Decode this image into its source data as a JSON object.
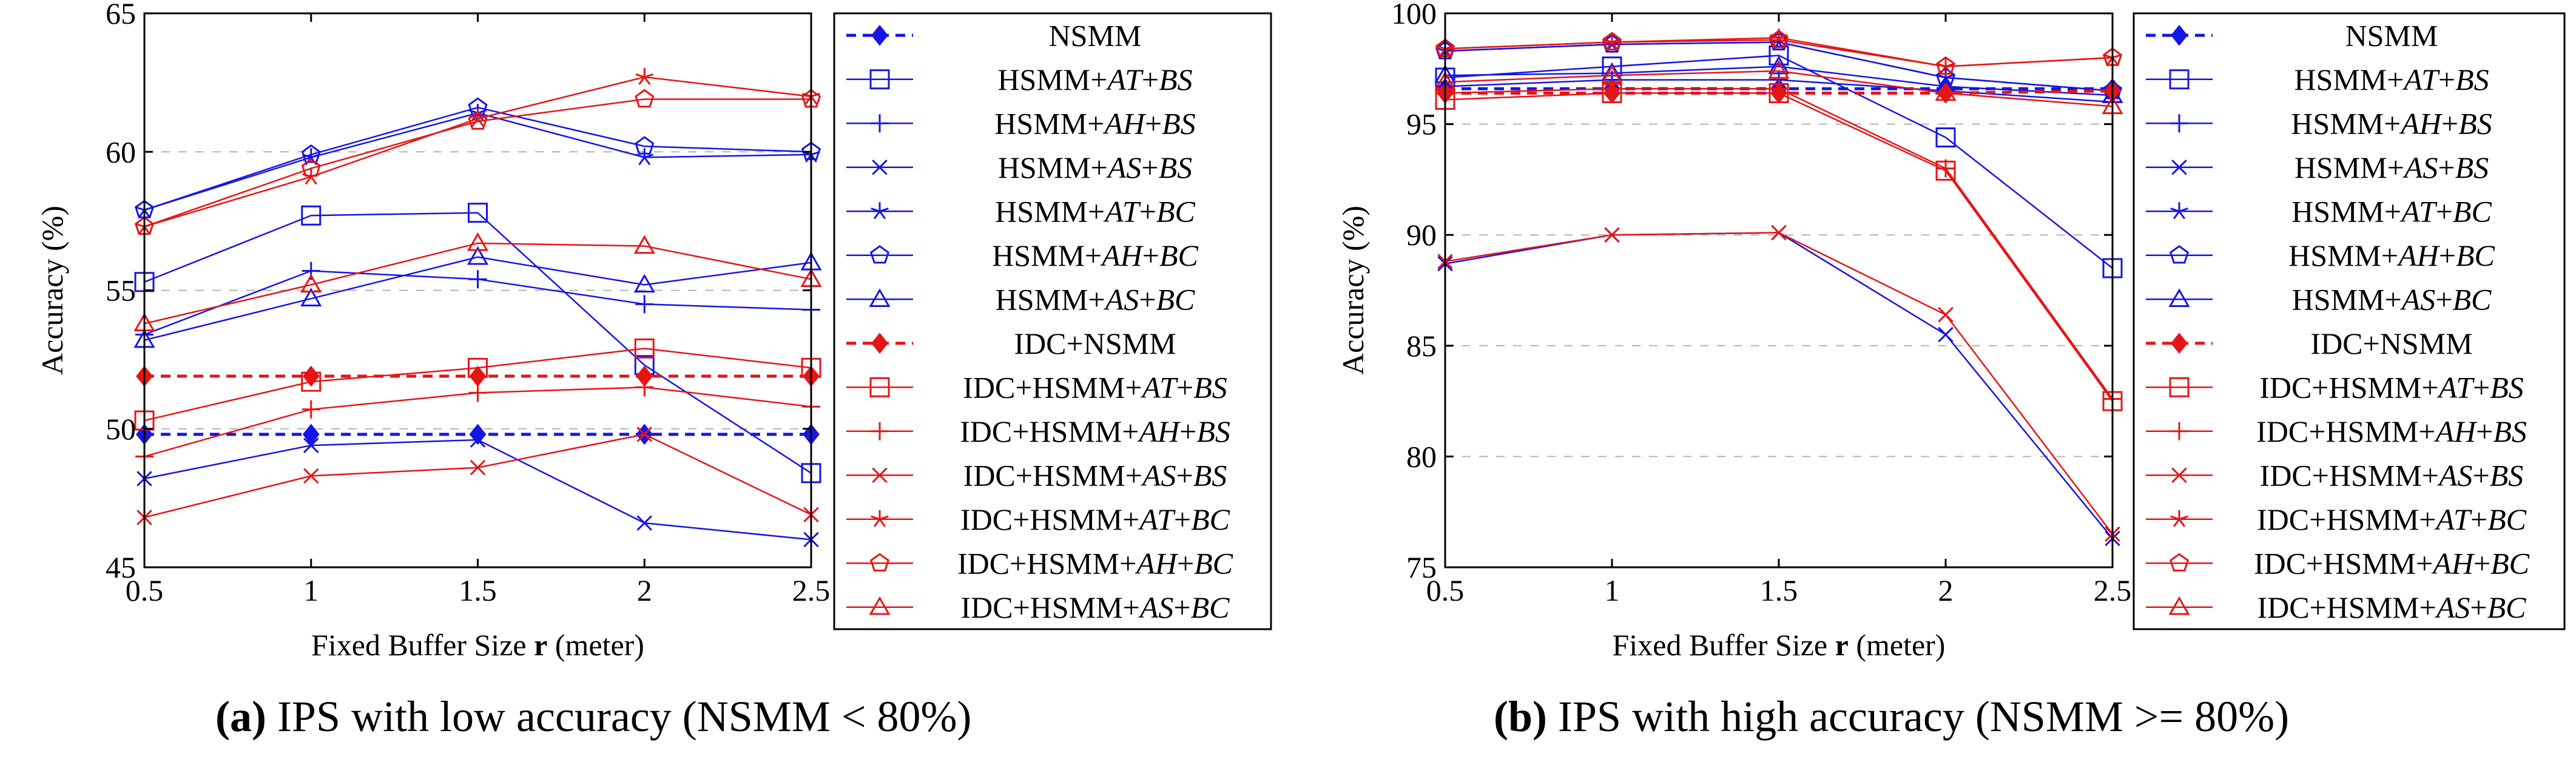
{
  "colors": {
    "blue": "#1515e6",
    "red": "#e61515",
    "grid": "#b3b3b3"
  },
  "chart_data": [
    {
      "type": "line",
      "caption_label": "(a)",
      "caption_text": " IPS with low accuracy (NSMM < 80%)",
      "xlabel_main": "Fixed Buffer Size ",
      "xlabel_bold": "r",
      "xlabel_unit": " (meter)",
      "ylabel": "Accuracy (%)",
      "x": [
        0.5,
        1,
        1.5,
        2,
        2.5
      ],
      "x_tick_labels": [
        "0.5",
        "1",
        "1.5",
        "2",
        "2.5"
      ],
      "ylim": [
        45,
        65
      ],
      "y_ticks": [
        45,
        50,
        55,
        60,
        65
      ],
      "grid": "horizontal dashed",
      "legend_position": "right",
      "series": [
        {
          "name": "NSMM",
          "pre": "NSMM",
          "it1": "",
          "mid": "",
          "it2": "",
          "color": "blue",
          "marker": "diamond",
          "dashed": true,
          "values": [
            49.8,
            49.8,
            49.8,
            49.8,
            49.8
          ]
        },
        {
          "name": "HSMM+AT+BS",
          "pre": "HSMM+",
          "it1": "AT",
          "mid": "+",
          "it2": "BS",
          "color": "blue",
          "marker": "square",
          "dashed": false,
          "values": [
            55.3,
            57.7,
            57.8,
            52.3,
            48.4
          ]
        },
        {
          "name": "HSMM+AH+BS",
          "pre": "HSMM+",
          "it1": "AH",
          "mid": "+",
          "it2": "BS",
          "color": "blue",
          "marker": "plus",
          "dashed": false,
          "values": [
            53.4,
            55.7,
            55.4,
            54.5,
            54.3
          ]
        },
        {
          "name": "HSMM+AS+BS",
          "pre": "HSMM+",
          "it1": "AS",
          "mid": "+",
          "it2": "BS",
          "color": "blue",
          "marker": "cross",
          "dashed": false,
          "values": [
            48.2,
            49.4,
            49.6,
            46.6,
            46.0
          ]
        },
        {
          "name": "HSMM+AT+BC",
          "pre": "HSMM+",
          "it1": "AT",
          "mid": "+",
          "it2": "BC",
          "color": "blue",
          "marker": "star",
          "dashed": false,
          "values": [
            57.9,
            59.8,
            61.4,
            59.8,
            59.9
          ]
        },
        {
          "name": "HSMM+AH+BC",
          "pre": "HSMM+",
          "it1": "AH",
          "mid": "+",
          "it2": "BC",
          "color": "blue",
          "marker": "pentagon",
          "dashed": false,
          "values": [
            57.9,
            59.9,
            61.6,
            60.2,
            60.0
          ]
        },
        {
          "name": "HSMM+AS+BC",
          "pre": "HSMM+",
          "it1": "AS",
          "mid": "+",
          "it2": "BC",
          "color": "blue",
          "marker": "triangle",
          "dashed": false,
          "values": [
            53.2,
            54.7,
            56.2,
            55.2,
            56.0
          ]
        },
        {
          "name": "IDC+NSMM",
          "pre": "IDC+NSMM",
          "it1": "",
          "mid": "",
          "it2": "",
          "color": "red",
          "marker": "diamond",
          "dashed": true,
          "values": [
            51.9,
            51.9,
            51.9,
            51.9,
            51.9
          ]
        },
        {
          "name": "IDC+HSMM+AT+BS",
          "pre": "IDC+HSMM+",
          "it1": "AT",
          "mid": "+",
          "it2": "BS",
          "color": "red",
          "marker": "square",
          "dashed": false,
          "values": [
            50.3,
            51.7,
            52.2,
            52.9,
            52.2
          ]
        },
        {
          "name": "IDC+HSMM+AH+BS",
          "pre": "IDC+HSMM+",
          "it1": "AH",
          "mid": "+",
          "it2": "BS",
          "color": "red",
          "marker": "plus",
          "dashed": false,
          "values": [
            49.0,
            50.7,
            51.3,
            51.5,
            50.8
          ]
        },
        {
          "name": "IDC+HSMM+AS+BS",
          "pre": "IDC+HSMM+",
          "it1": "AS",
          "mid": "+",
          "it2": "BS",
          "color": "red",
          "marker": "cross",
          "dashed": false,
          "values": [
            46.8,
            48.3,
            48.6,
            49.8,
            46.9
          ]
        },
        {
          "name": "IDC+HSMM+AT+BC",
          "pre": "IDC+HSMM+",
          "it1": "AT",
          "mid": "+",
          "it2": "BC",
          "color": "red",
          "marker": "star",
          "dashed": false,
          "values": [
            57.3,
            59.1,
            61.2,
            62.7,
            62.0
          ]
        },
        {
          "name": "IDC+HSMM+AH+BC",
          "pre": "IDC+HSMM+",
          "it1": "AH",
          "mid": "+",
          "it2": "BC",
          "color": "red",
          "marker": "pentagon",
          "dashed": false,
          "values": [
            57.3,
            59.4,
            61.1,
            61.9,
            61.9
          ]
        },
        {
          "name": "IDC+HSMM+AS+BC",
          "pre": "IDC+HSMM+",
          "it1": "AS",
          "mid": "+",
          "it2": "BC",
          "color": "red",
          "marker": "triangle",
          "dashed": false,
          "values": [
            53.8,
            55.2,
            56.7,
            56.6,
            55.4
          ]
        }
      ]
    },
    {
      "type": "line",
      "caption_label": "(b)",
      "caption_text": " IPS with high accuracy (NSMM >= 80%)",
      "xlabel_main": "Fixed Buffer Size ",
      "xlabel_bold": "r",
      "xlabel_unit": " (meter)",
      "ylabel": "Accuracy (%)",
      "x": [
        0.5,
        1,
        1.5,
        2,
        2.5
      ],
      "x_tick_labels": [
        "0.5",
        "1",
        "1.5",
        "2",
        "2.5"
      ],
      "ylim": [
        75,
        100
      ],
      "y_ticks": [
        75,
        80,
        85,
        90,
        95,
        100
      ],
      "grid": "horizontal dashed",
      "legend_position": "right",
      "series": [
        {
          "name": "NSMM",
          "pre": "NSMM",
          "it1": "",
          "mid": "",
          "it2": "",
          "color": "blue",
          "marker": "diamond",
          "dashed": true,
          "values": [
            96.6,
            96.6,
            96.6,
            96.6,
            96.6
          ]
        },
        {
          "name": "HSMM+AT+BS",
          "pre": "HSMM+",
          "it1": "AT",
          "mid": "+",
          "it2": "BS",
          "color": "blue",
          "marker": "square",
          "dashed": false,
          "values": [
            97.1,
            97.6,
            98.1,
            94.4,
            88.5
          ]
        },
        {
          "name": "HSMM+AH+BS",
          "pre": "HSMM+",
          "it1": "AH",
          "mid": "+",
          "it2": "BS",
          "color": "blue",
          "marker": "plus",
          "dashed": false,
          "values": [
            96.7,
            97.0,
            97.0,
            96.5,
            96.0
          ]
        },
        {
          "name": "HSMM+AS+BS",
          "pre": "HSMM+",
          "it1": "AS",
          "mid": "+",
          "it2": "BS",
          "color": "blue",
          "marker": "cross",
          "dashed": false,
          "values": [
            88.7,
            90.0,
            90.1,
            85.5,
            76.3
          ]
        },
        {
          "name": "HSMM+AT+BC",
          "pre": "HSMM+",
          "it1": "AT",
          "mid": "+",
          "it2": "BC",
          "color": "blue",
          "marker": "star",
          "dashed": false,
          "values": [
            98.3,
            98.6,
            98.7,
            97.1,
            96.5
          ]
        },
        {
          "name": "HSMM+AH+BC",
          "pre": "HSMM+",
          "it1": "AH",
          "mid": "+",
          "it2": "BC",
          "color": "blue",
          "marker": "pentagon",
          "dashed": false,
          "values": [
            98.3,
            98.6,
            98.7,
            97.1,
            96.5
          ]
        },
        {
          "name": "HSMM+AS+BC",
          "pre": "HSMM+",
          "it1": "AS",
          "mid": "+",
          "it2": "BC",
          "color": "blue",
          "marker": "triangle",
          "dashed": false,
          "values": [
            97.2,
            97.3,
            97.6,
            96.7,
            96.3
          ]
        },
        {
          "name": "IDC+NSMM",
          "pre": "IDC+NSMM",
          "it1": "",
          "mid": "",
          "it2": "",
          "color": "red",
          "marker": "diamond",
          "dashed": true,
          "values": [
            96.4,
            96.4,
            96.4,
            96.4,
            96.5
          ]
        },
        {
          "name": "IDC+HSMM+AT+BS",
          "pre": "IDC+HSMM+",
          "it1": "AT",
          "mid": "+",
          "it2": "BS",
          "color": "red",
          "marker": "square",
          "dashed": false,
          "values": [
            96.1,
            96.4,
            96.4,
            92.9,
            82.5
          ]
        },
        {
          "name": "IDC+HSMM+AH+BS",
          "pre": "IDC+HSMM+",
          "it1": "AH",
          "mid": "+",
          "it2": "BS",
          "color": "red",
          "marker": "plus",
          "dashed": false,
          "values": [
            96.4,
            96.6,
            96.6,
            93.0,
            82.6
          ]
        },
        {
          "name": "IDC+HSMM+AS+BS",
          "pre": "IDC+HSMM+",
          "it1": "AS",
          "mid": "+",
          "it2": "BS",
          "color": "red",
          "marker": "cross",
          "dashed": false,
          "values": [
            88.8,
            90.0,
            90.1,
            86.4,
            76.5
          ]
        },
        {
          "name": "IDC+HSMM+AT+BC",
          "pre": "IDC+HSMM+",
          "it1": "AT",
          "mid": "+",
          "it2": "BC",
          "color": "red",
          "marker": "star",
          "dashed": false,
          "values": [
            98.4,
            98.7,
            98.9,
            97.6,
            98.0
          ]
        },
        {
          "name": "IDC+HSMM+AH+BC",
          "pre": "IDC+HSMM+",
          "it1": "AH",
          "mid": "+",
          "it2": "BC",
          "color": "red",
          "marker": "pentagon",
          "dashed": false,
          "values": [
            98.4,
            98.7,
            98.8,
            97.6,
            98.0
          ]
        },
        {
          "name": "IDC+HSMM+AS+BC",
          "pre": "IDC+HSMM+",
          "it1": "AS",
          "mid": "+",
          "it2": "BC",
          "color": "red",
          "marker": "triangle",
          "dashed": false,
          "values": [
            96.9,
            97.2,
            97.4,
            96.4,
            95.8
          ]
        }
      ]
    }
  ]
}
